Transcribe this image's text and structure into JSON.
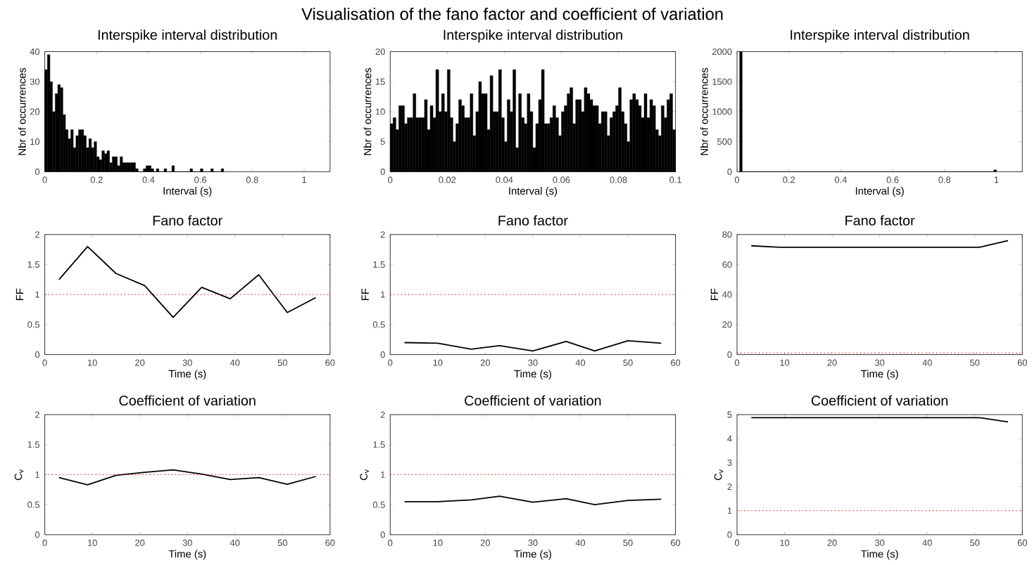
{
  "chart_data": [
    {
      "type": "histogram",
      "title": "Interspike interval distribution",
      "xlabel": "Interval (s)",
      "ylabel": "Nbr of occurrences",
      "color": "#000000",
      "annotations": [
        "Visualisation of the fano factor and coefficient of variation"
      ],
      "bins": [
        0,
        0.01,
        0.02,
        0.03,
        0.04,
        0.05,
        0.06,
        0.07,
        0.08,
        0.09,
        0.1,
        0.11,
        0.12,
        0.13,
        0.14,
        0.15,
        0.16,
        0.17,
        0.18,
        0.19,
        0.2,
        0.21,
        0.22,
        0.23,
        0.24,
        0.25,
        0.26,
        0.27,
        0.28,
        0.29,
        0.3,
        0.31,
        0.32,
        0.33,
        0.34,
        0.35,
        0.36,
        0.37,
        0.38,
        0.39,
        0.4,
        0.41,
        0.42,
        0.43,
        0.44,
        0.45,
        0.46,
        0.47,
        0.48,
        0.49,
        0.5,
        0.51,
        0.52,
        0.53,
        0.54,
        0.55,
        0.56,
        0.57,
        0.58,
        0.59,
        0.6,
        0.61,
        0.62,
        0.63,
        0.64,
        0.65,
        0.66,
        0.67,
        0.68,
        0.69
      ],
      "values": [
        34,
        39,
        30,
        20,
        26,
        29,
        28,
        19,
        14,
        11,
        14,
        8,
        12,
        14,
        14,
        12,
        8,
        11,
        8,
        10,
        5,
        4,
        7,
        6,
        7,
        3,
        5,
        5,
        2,
        5,
        3,
        3,
        3,
        3,
        3,
        1,
        0,
        0,
        1,
        2,
        2,
        1,
        0,
        1,
        0,
        0,
        1,
        0,
        0,
        2,
        0,
        0,
        0,
        0,
        0,
        0,
        1,
        0,
        0,
        0,
        1,
        0,
        0,
        0,
        1,
        0,
        0,
        0,
        1
      ],
      "xlim": [
        0,
        1.1
      ],
      "xticks": [
        0,
        0.2,
        0.4,
        0.6,
        0.8,
        1
      ],
      "ylim": [
        0,
        40
      ],
      "yticks": [
        0,
        10,
        20,
        30,
        40
      ]
    },
    {
      "type": "histogram",
      "title": "Interspike interval distribution",
      "xlabel": "Interval (s)",
      "ylabel": "Nbr of occurrences",
      "color": "#000000",
      "bins": [
        0,
        0.001,
        0.002,
        0.003,
        0.004,
        0.005,
        0.006,
        0.007,
        0.008,
        0.009,
        0.01,
        0.011,
        0.012,
        0.013,
        0.014,
        0.015,
        0.016,
        0.017,
        0.018,
        0.019,
        0.02,
        0.021,
        0.022,
        0.023,
        0.024,
        0.025,
        0.026,
        0.027,
        0.028,
        0.029,
        0.03,
        0.031,
        0.032,
        0.033,
        0.034,
        0.035,
        0.036,
        0.037,
        0.038,
        0.039,
        0.04,
        0.041,
        0.042,
        0.043,
        0.044,
        0.045,
        0.046,
        0.047,
        0.048,
        0.049,
        0.05,
        0.051,
        0.052,
        0.053,
        0.054,
        0.055,
        0.056,
        0.057,
        0.058,
        0.059,
        0.06,
        0.061,
        0.062,
        0.063,
        0.064,
        0.065,
        0.066,
        0.067,
        0.068,
        0.069,
        0.07,
        0.071,
        0.072,
        0.073,
        0.074,
        0.075,
        0.076,
        0.077,
        0.078,
        0.079,
        0.08,
        0.081,
        0.082,
        0.083,
        0.084,
        0.085,
        0.086,
        0.087,
        0.088,
        0.089,
        0.09,
        0.091,
        0.092,
        0.093,
        0.094,
        0.095,
        0.096,
        0.097,
        0.098,
        0.099,
        0.1
      ],
      "values": [
        8,
        9,
        7,
        11,
        11,
        8,
        9,
        9,
        13,
        9,
        9,
        9,
        12,
        7,
        11,
        9,
        17,
        10,
        13,
        10,
        17,
        9,
        5,
        8,
        12,
        11,
        9,
        9,
        13,
        6,
        10,
        15,
        13,
        13,
        7,
        16,
        10,
        10,
        17,
        9,
        5,
        12,
        10,
        17,
        4,
        13,
        9,
        8,
        13,
        10,
        4,
        8,
        12,
        17,
        8,
        8,
        9,
        11,
        9,
        6,
        10,
        11,
        13,
        14,
        8,
        12,
        12,
        10,
        14,
        13,
        12,
        11,
        11,
        8,
        10,
        10,
        6,
        9,
        10,
        11,
        14,
        10,
        8,
        5,
        12,
        13,
        12,
        11,
        9,
        13,
        9,
        12,
        11,
        7,
        6,
        11,
        9,
        12,
        13,
        7
      ],
      "xlim": [
        0,
        0.1
      ],
      "xticks": [
        0,
        0.02,
        0.04,
        0.06,
        0.08,
        0.1
      ],
      "ylim": [
        0,
        20
      ],
      "yticks": [
        0,
        5,
        10,
        15,
        20
      ]
    },
    {
      "type": "histogram",
      "title": "Interspike interval distribution",
      "xlabel": "Interval (s)",
      "ylabel": "Nbr of occurrences",
      "color": "#000000",
      "bins": [
        0.01,
        0.02,
        0.99,
        1.0
      ],
      "values": [
        2000,
        0,
        30
      ],
      "xlim": [
        0,
        1.1
      ],
      "xticks": [
        0,
        0.2,
        0.4,
        0.6,
        0.8,
        1
      ],
      "ylim": [
        0,
        2000
      ],
      "yticks": [
        0,
        500,
        1000,
        1500,
        2000
      ]
    },
    {
      "type": "line",
      "title": "Fano factor",
      "xlabel": "Time (s)",
      "ylabel": "FF",
      "color": "#000000",
      "x": [
        3,
        9,
        15,
        21,
        27,
        33,
        39,
        45,
        51,
        57
      ],
      "values": [
        1.25,
        1.8,
        1.35,
        1.15,
        0.62,
        1.12,
        0.93,
        1.33,
        0.7,
        0.95
      ],
      "xlim": [
        0,
        60
      ],
      "xticks": [
        0,
        10,
        20,
        30,
        40,
        50,
        60
      ],
      "ylim": [
        0,
        2
      ],
      "yticks": [
        0,
        0.5,
        1,
        1.5,
        2
      ],
      "ref_lines": [
        {
          "axis": "y",
          "value": 1,
          "color": "#ff0000",
          "line_style": "dotted"
        }
      ]
    },
    {
      "type": "line",
      "title": "Fano factor",
      "xlabel": "Time (s)",
      "ylabel": "FF",
      "color": "#000000",
      "x": [
        3,
        10,
        17,
        23,
        30,
        37,
        43,
        50,
        57
      ],
      "values": [
        0.2,
        0.19,
        0.09,
        0.15,
        0.06,
        0.22,
        0.06,
        0.23,
        0.19
      ],
      "xlim": [
        0,
        60
      ],
      "xticks": [
        0,
        10,
        20,
        30,
        40,
        50,
        60
      ],
      "ylim": [
        0,
        2
      ],
      "yticks": [
        0,
        0.5,
        1,
        1.5,
        2
      ],
      "ref_lines": [
        {
          "axis": "y",
          "value": 1,
          "color": "#ff0000",
          "line_style": "dotted"
        }
      ]
    },
    {
      "type": "line",
      "title": "Fano factor",
      "xlabel": "Time (s)",
      "ylabel": "FF",
      "color": "#000000",
      "x": [
        3,
        9,
        15,
        21,
        27,
        33,
        39,
        45,
        51,
        57
      ],
      "values": [
        72.5,
        71.5,
        71.5,
        71.5,
        71.5,
        71.5,
        71.5,
        71.5,
        71.5,
        76
      ],
      "xlim": [
        0,
        60
      ],
      "xticks": [
        0,
        10,
        20,
        30,
        40,
        50,
        60
      ],
      "ylim": [
        0,
        80
      ],
      "yticks": [
        0,
        20,
        40,
        60,
        80
      ],
      "ref_lines": [
        {
          "axis": "y",
          "value": 1,
          "color": "#ff0000",
          "line_style": "dotted"
        }
      ]
    },
    {
      "type": "line",
      "title": "Coefficient of variation",
      "xlabel": "Time (s)",
      "ylabel": "C$_{v}$",
      "color": "#000000",
      "x": [
        3,
        9,
        15,
        21,
        27,
        33,
        39,
        45,
        51,
        57
      ],
      "values": [
        0.95,
        0.83,
        0.99,
        1.04,
        1.08,
        1.01,
        0.92,
        0.95,
        0.84,
        0.97
      ],
      "xlim": [
        0,
        60
      ],
      "xticks": [
        0,
        10,
        20,
        30,
        40,
        50,
        60
      ],
      "ylim": [
        0,
        2
      ],
      "yticks": [
        0,
        0.5,
        1,
        1.5,
        2
      ],
      "ref_lines": [
        {
          "axis": "y",
          "value": 1,
          "color": "#ff0000",
          "line_style": "dotted"
        }
      ]
    },
    {
      "type": "line",
      "title": "Coefficient of variation",
      "xlabel": "Time (s)",
      "ylabel": "C$_{v}$",
      "color": "#000000",
      "x": [
        3,
        10,
        17,
        23,
        30,
        37,
        43,
        50,
        57
      ],
      "values": [
        0.55,
        0.55,
        0.58,
        0.64,
        0.54,
        0.6,
        0.5,
        0.57,
        0.59
      ],
      "xlim": [
        0,
        60
      ],
      "xticks": [
        0,
        10,
        20,
        30,
        40,
        50,
        60
      ],
      "ylim": [
        0,
        2
      ],
      "yticks": [
        0,
        0.5,
        1,
        1.5,
        2
      ],
      "ref_lines": [
        {
          "axis": "y",
          "value": 1,
          "color": "#ff0000",
          "line_style": "dotted"
        }
      ]
    },
    {
      "type": "line",
      "title": "Coefficient of variation",
      "xlabel": "Time (s)",
      "ylabel": "C$_{v}$",
      "color": "#000000",
      "x": [
        3,
        9,
        15,
        21,
        27,
        33,
        39,
        45,
        51,
        57
      ],
      "values": [
        4.87,
        4.87,
        4.87,
        4.87,
        4.87,
        4.87,
        4.87,
        4.87,
        4.87,
        4.7
      ],
      "xlim": [
        0,
        60
      ],
      "xticks": [
        0,
        10,
        20,
        30,
        40,
        50,
        60
      ],
      "ylim": [
        0,
        5
      ],
      "yticks": [
        0,
        1,
        2,
        3,
        4,
        5
      ],
      "ref_lines": [
        {
          "axis": "y",
          "value": 1,
          "color": "#ff0000",
          "line_style": "dotted"
        }
      ]
    }
  ]
}
